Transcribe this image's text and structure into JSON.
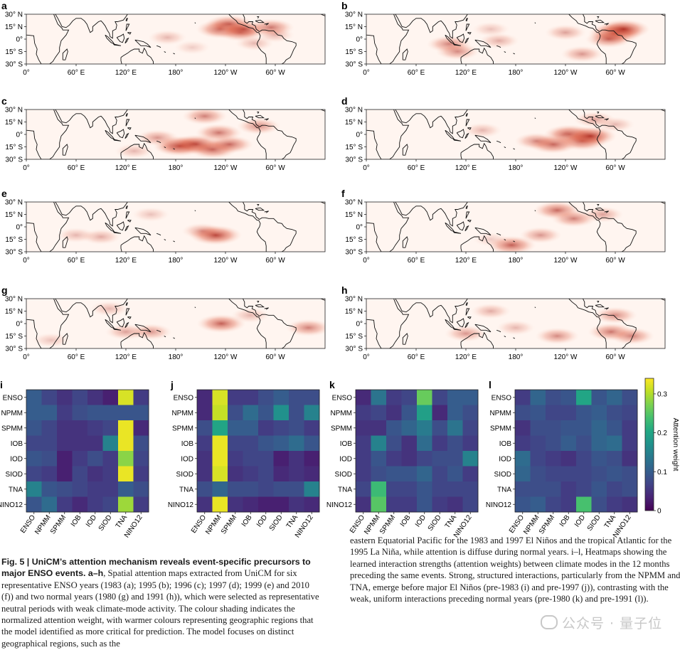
{
  "map_panels": [
    {
      "letter": "a",
      "year": "1983"
    },
    {
      "letter": "b",
      "year": "1995"
    },
    {
      "letter": "c",
      "year": "1996"
    },
    {
      "letter": "d",
      "year": "1997"
    },
    {
      "letter": "e",
      "year": "1999"
    },
    {
      "letter": "f",
      "year": "2010"
    },
    {
      "letter": "g",
      "year": "1980"
    },
    {
      "letter": "h",
      "year": "1991"
    }
  ],
  "map_axes": {
    "lat_ticks": [
      "30° N",
      "15° N",
      "0°",
      "15° S",
      "30° S"
    ],
    "lon_ticks": [
      "0°",
      "60° E",
      "120° E",
      "180°",
      "120° W",
      "60° W"
    ]
  },
  "heatmap_panels": [
    {
      "letter": "i"
    },
    {
      "letter": "j"
    },
    {
      "letter": "k"
    },
    {
      "letter": "l"
    }
  ],
  "colorbar": {
    "label": "Attention weight",
    "ticks": [
      "0.3",
      "0.2",
      "0.1",
      "0"
    ],
    "tick_values": [
      0.3,
      0.2,
      0.1,
      0.0
    ],
    "range": [
      0,
      0.34
    ],
    "colormap": "viridis"
  },
  "colors": {
    "map_max": "#b2271a",
    "map_min": "#fff5f0"
  },
  "chart_data": [
    {
      "type": "heatmap",
      "panel": "a-h",
      "description_values": "spatial attention maps, normalized attention weight (0-1), hotspots as [lon_deg_east, lat_deg, weight]",
      "maps": {
        "a": [
          [
            235,
            12,
            0.75
          ],
          [
            245,
            18,
            0.7
          ],
          [
            258,
            8,
            0.6
          ],
          [
            262,
            12,
            0.65
          ],
          [
            295,
            14,
            0.6
          ],
          [
            275,
            -5,
            0.3
          ],
          [
            170,
            2,
            0.3
          ],
          [
            300,
            5,
            0.3
          ],
          [
            200,
            -10,
            0.2
          ]
        ],
        "b": [
          [
            300,
            7,
            0.9
          ],
          [
            310,
            12,
            0.85
          ],
          [
            292,
            0,
            0.6
          ],
          [
            100,
            -6,
            0.55
          ],
          [
            110,
            -15,
            0.5
          ],
          [
            260,
            -18,
            0.45
          ],
          [
            240,
            8,
            0.4
          ],
          [
            160,
            -2,
            0.35
          ],
          [
            150,
            12,
            0.25
          ]
        ],
        "c": [
          [
            185,
            -14,
            0.9
          ],
          [
            205,
            -12,
            0.8
          ],
          [
            225,
            -18,
            0.7
          ],
          [
            245,
            -12,
            0.65
          ],
          [
            232,
            2,
            0.6
          ],
          [
            158,
            -4,
            0.45
          ],
          [
            215,
            22,
            0.55
          ],
          [
            280,
            10,
            0.5
          ],
          [
            130,
            -20,
            0.3
          ]
        ],
        "d": [
          [
            245,
            0,
            0.8
          ],
          [
            260,
            -8,
            0.75
          ],
          [
            270,
            -2,
            0.85
          ],
          [
            225,
            -12,
            0.7
          ],
          [
            205,
            -8,
            0.5
          ],
          [
            275,
            18,
            0.4
          ],
          [
            300,
            12,
            0.3
          ],
          [
            140,
            5,
            0.3
          ]
        ],
        "e": [
          [
            228,
            -10,
            0.85
          ],
          [
            212,
            -5,
            0.4
          ],
          [
            90,
            -12,
            0.35
          ],
          [
            150,
            15,
            0.25
          ],
          [
            60,
            -10,
            0.3
          ]
        ],
        "f": [
          [
            230,
            20,
            0.65
          ],
          [
            250,
            10,
            0.55
          ],
          [
            210,
            -10,
            0.45
          ],
          [
            175,
            -22,
            0.7
          ],
          [
            285,
            15,
            0.4
          ],
          [
            150,
            -15,
            0.2
          ]
        ],
        "g": [
          [
            235,
            0,
            0.7
          ],
          [
            150,
            -10,
            0.45
          ],
          [
            120,
            -10,
            0.4
          ],
          [
            340,
            -5,
            0.55
          ],
          [
            100,
            18,
            0.3
          ],
          [
            30,
            -20,
            0.25
          ],
          [
            270,
            10,
            0.3
          ]
        ],
        "h": [
          [
            295,
            -10,
            0.6
          ],
          [
            320,
            -15,
            0.55
          ],
          [
            300,
            10,
            0.5
          ],
          [
            230,
            -15,
            0.5
          ],
          [
            120,
            -12,
            0.45
          ],
          [
            150,
            15,
            0.35
          ],
          [
            180,
            -5,
            0.3
          ]
        ]
      }
    },
    {
      "type": "heatmap",
      "panel": "i",
      "rows": [
        "ENSO",
        "NPMM",
        "SPMM",
        "IOB",
        "IOD",
        "SIOD",
        "TNA",
        "NINO12"
      ],
      "cols": [
        "ENSO",
        "NPMM",
        "SPMM",
        "IOB",
        "IOD",
        "SIOD",
        "TNA",
        "NINO12"
      ],
      "values": [
        [
          0.1,
          0.07,
          0.05,
          0.07,
          0.05,
          0.03,
          0.32,
          0.06
        ],
        [
          0.1,
          0.1,
          0.06,
          0.08,
          0.09,
          0.09,
          0.09,
          0.09
        ],
        [
          0.09,
          0.07,
          0.05,
          0.05,
          0.06,
          0.07,
          0.33,
          0.04
        ],
        [
          0.07,
          0.07,
          0.05,
          0.05,
          0.05,
          0.15,
          0.33,
          0.08
        ],
        [
          0.09,
          0.08,
          0.03,
          0.06,
          0.08,
          0.06,
          0.28,
          0.07
        ],
        [
          0.07,
          0.06,
          0.03,
          0.07,
          0.05,
          0.06,
          0.33,
          0.06
        ],
        [
          0.15,
          0.09,
          0.08,
          0.07,
          0.06,
          0.06,
          0.1,
          0.08
        ],
        [
          0.09,
          0.12,
          0.06,
          0.04,
          0.06,
          0.07,
          0.29,
          0.06
        ]
      ]
    },
    {
      "type": "heatmap",
      "panel": "j",
      "rows": [
        "ENSO",
        "NPMM",
        "SPMM",
        "IOB",
        "IOD",
        "SIOD",
        "TNA",
        "NINO12"
      ],
      "cols": [
        "ENSO",
        "NPMM",
        "SPMM",
        "IOB",
        "IOD",
        "SIOD",
        "TNA",
        "NINO12"
      ],
      "values": [
        [
          0.04,
          0.32,
          0.06,
          0.06,
          0.08,
          0.1,
          0.08,
          0.08
        ],
        [
          0.04,
          0.31,
          0.08,
          0.12,
          0.09,
          0.17,
          0.08,
          0.15
        ],
        [
          0.08,
          0.2,
          0.1,
          0.1,
          0.06,
          0.07,
          0.08,
          0.06
        ],
        [
          0.06,
          0.33,
          0.07,
          0.07,
          0.09,
          0.1,
          0.12,
          0.09
        ],
        [
          0.05,
          0.33,
          0.06,
          0.07,
          0.07,
          0.03,
          0.05,
          0.03
        ],
        [
          0.05,
          0.32,
          0.05,
          0.06,
          0.07,
          0.04,
          0.05,
          0.04
        ],
        [
          0.08,
          0.11,
          0.08,
          0.08,
          0.07,
          0.08,
          0.08,
          0.15
        ],
        [
          0.05,
          0.33,
          0.05,
          0.04,
          0.03,
          0.03,
          0.05,
          0.04
        ]
      ]
    },
    {
      "type": "heatmap",
      "panel": "k",
      "rows": [
        "ENSO",
        "NPMM",
        "SPMM",
        "IOB",
        "IOD",
        "SIOD",
        "TNA",
        "NINO12"
      ],
      "cols": [
        "ENSO",
        "NPMM",
        "SPMM",
        "IOB",
        "IOD",
        "SIOD",
        "TNA",
        "NINO12"
      ],
      "values": [
        [
          0.04,
          0.13,
          0.06,
          0.07,
          0.26,
          0.07,
          0.1,
          0.1
        ],
        [
          0.06,
          0.07,
          0.05,
          0.09,
          0.19,
          0.04,
          0.1,
          0.08
        ],
        [
          0.05,
          0.05,
          0.09,
          0.11,
          0.14,
          0.08,
          0.13,
          0.07
        ],
        [
          0.06,
          0.15,
          0.08,
          0.05,
          0.12,
          0.06,
          0.08,
          0.06
        ],
        [
          0.06,
          0.09,
          0.06,
          0.05,
          0.07,
          0.08,
          0.08,
          0.15
        ],
        [
          0.06,
          0.08,
          0.09,
          0.09,
          0.11,
          0.07,
          0.09,
          0.06
        ],
        [
          0.07,
          0.23,
          0.07,
          0.07,
          0.09,
          0.07,
          0.07,
          0.07
        ],
        [
          0.05,
          0.25,
          0.06,
          0.06,
          0.09,
          0.06,
          0.05,
          0.07
        ]
      ]
    },
    {
      "type": "heatmap",
      "panel": "l",
      "rows": [
        "ENSO",
        "NPMM",
        "SPMM",
        "IOB",
        "IOD",
        "SIOD",
        "TNA",
        "NINO12"
      ],
      "cols": [
        "ENSO",
        "NPMM",
        "SPMM",
        "IOB",
        "IOD",
        "SIOD",
        "TNA",
        "NINO12"
      ],
      "values": [
        [
          0.06,
          0.11,
          0.08,
          0.09,
          0.2,
          0.09,
          0.11,
          0.08
        ],
        [
          0.08,
          0.09,
          0.07,
          0.07,
          0.09,
          0.1,
          0.08,
          0.07
        ],
        [
          0.05,
          0.08,
          0.08,
          0.09,
          0.09,
          0.11,
          0.09,
          0.06
        ],
        [
          0.06,
          0.07,
          0.08,
          0.1,
          0.08,
          0.11,
          0.12,
          0.06
        ],
        [
          0.12,
          0.07,
          0.06,
          0.05,
          0.07,
          0.09,
          0.08,
          0.05
        ],
        [
          0.11,
          0.08,
          0.07,
          0.07,
          0.07,
          0.08,
          0.09,
          0.08
        ],
        [
          0.08,
          0.08,
          0.08,
          0.06,
          0.07,
          0.09,
          0.07,
          0.08
        ],
        [
          0.09,
          0.1,
          0.07,
          0.06,
          0.24,
          0.08,
          0.06,
          0.05
        ]
      ]
    }
  ],
  "caption_left": {
    "head": "Fig. 5 | UniCM’s attention mechanism reveals event-specific precursors to major ENSO events. a–h",
    "body": ", Spatial attention maps extracted from UniCM for six representative ENSO years (1983 (a); 1995 (b); 1996 (c); 1997 (d); 1999 (e) and 2010 (f)) and two normal years (1980 (g) and 1991 (h)), which were selected as representative neutral periods with weak climate-mode activity. The colour shading indicates the normalized attention weight, with warmer colours representing geographic regions that the model identified as more critical for prediction. The model focuses on distinct geographical regions, such as the"
  },
  "caption_right": {
    "body": "eastern Equatorial Pacific for the 1983 and 1997 El Niños and the tropical Atlantic for the 1995 La Niña, while attention is diffuse during normal years. i–l, Heatmaps showing the learned interaction strengths (attention weights) between climate modes in the 12 months preceding the same events. Strong, structured interactions, particularly from the NPMM and TNA, emerge before major El Niños (pre-1983 (i) and pre-1997 (j)), contrasting with the weak, uniform interactions preceding normal years (pre-1980 (k) and pre-1991 (l))."
  },
  "watermark": "公众号 · 量子位"
}
